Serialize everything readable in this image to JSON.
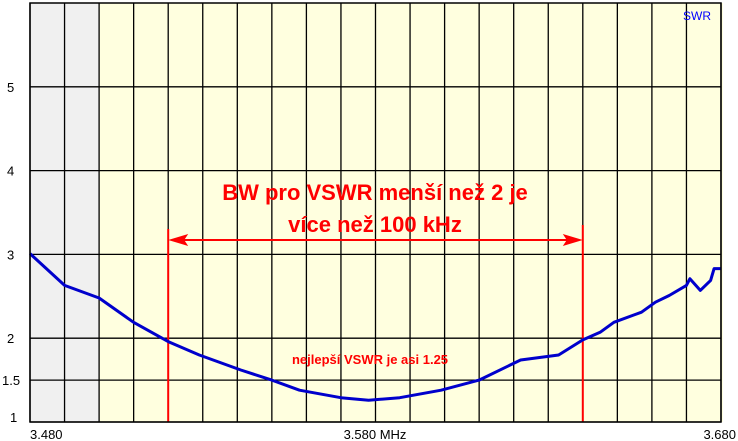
{
  "chart_data": {
    "type": "line",
    "legend": "SWR",
    "legend_color": "#0000ff",
    "xlabel": "",
    "ylabel": "",
    "xlim": [
      3.48,
      3.68
    ],
    "ylim": [
      1,
      6
    ],
    "x_tick_labels": [
      "3.480",
      "3.580 MHz",
      "3.680"
    ],
    "y_ticks": [
      1,
      1.5,
      2,
      3,
      4,
      5
    ],
    "y_tick_labels": [
      "1",
      "1.5",
      "2",
      "3",
      "4",
      "5"
    ],
    "grid": true,
    "x_grid_step": 0.01,
    "shaded_range": [
      3.48,
      3.5
    ],
    "shaded_color": "#f0f0f0",
    "background_color": "#ffffdf",
    "series": [
      {
        "color": "#0000cc",
        "points": [
          [
            3.48,
            3.01
          ],
          [
            3.49,
            2.63
          ],
          [
            3.5,
            2.48
          ],
          [
            3.51,
            2.19
          ],
          [
            3.52,
            1.96
          ],
          [
            3.529,
            1.8
          ],
          [
            3.541,
            1.62
          ],
          [
            3.55,
            1.5
          ],
          [
            3.558,
            1.38
          ],
          [
            3.57,
            1.29
          ],
          [
            3.578,
            1.26
          ],
          [
            3.587,
            1.29
          ],
          [
            3.599,
            1.38
          ],
          [
            3.61,
            1.5
          ],
          [
            3.622,
            1.74
          ],
          [
            3.633,
            1.8
          ],
          [
            3.64,
            1.98
          ],
          [
            3.645,
            2.07
          ],
          [
            3.649,
            2.19
          ],
          [
            3.657,
            2.31
          ],
          [
            3.661,
            2.43
          ],
          [
            3.665,
            2.51
          ],
          [
            3.67,
            2.63
          ],
          [
            3.671,
            2.71
          ],
          [
            3.674,
            2.57
          ],
          [
            3.677,
            2.69
          ],
          [
            3.678,
            2.83
          ],
          [
            3.68,
            2.83
          ]
        ]
      }
    ],
    "annotations": {
      "bw_line1": "BW pro VSWR menší než 2 je",
      "bw_line2": "více než 100 kHz",
      "best": "nejlepší VSWR je asi 1.25",
      "bw_markers": [
        3.52,
        3.64
      ],
      "color": "#ff0000"
    }
  }
}
